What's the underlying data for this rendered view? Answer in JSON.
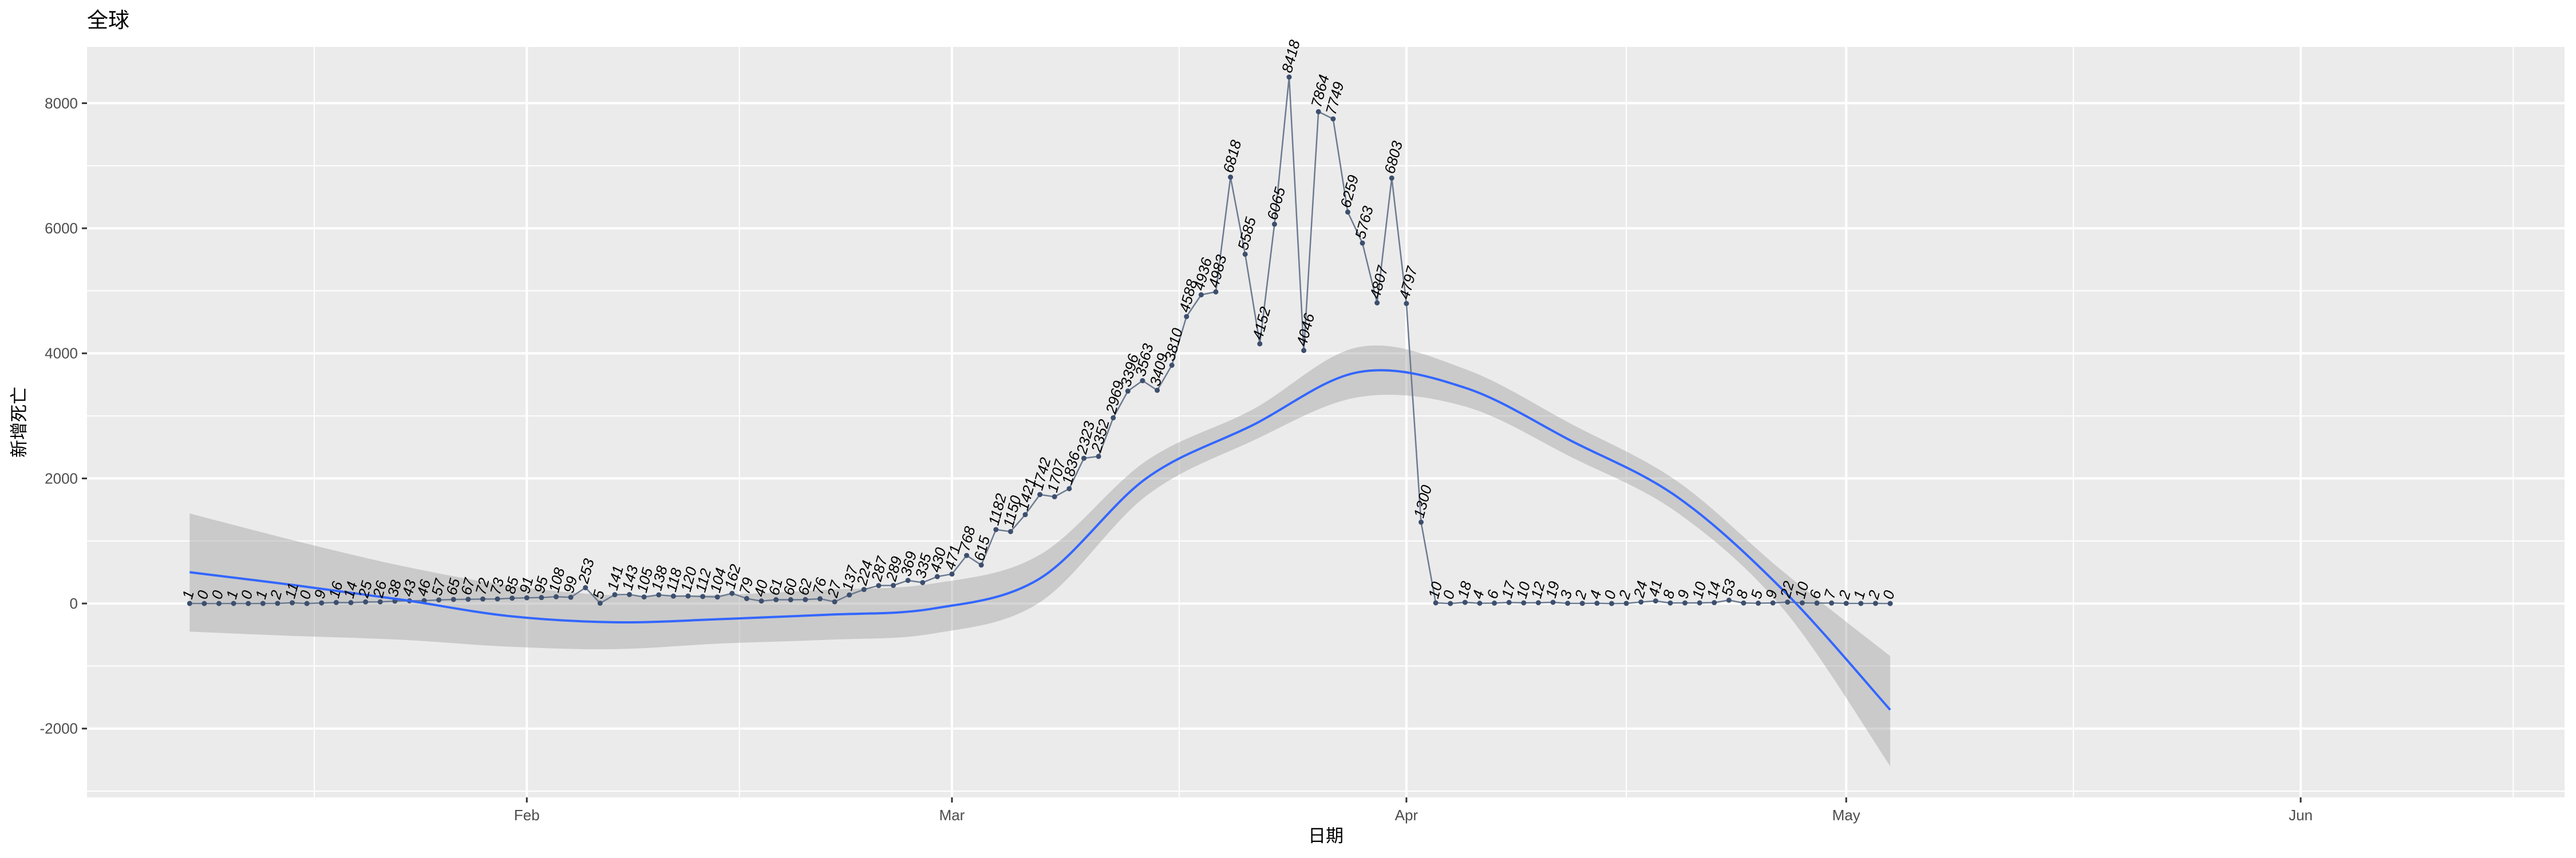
{
  "chart_data": {
    "type": "line",
    "title": "全球",
    "xlabel": "日期",
    "ylabel": "新增死亡",
    "x_start": "2020-01-09",
    "x_ticks": [
      "Feb",
      "Mar",
      "Apr",
      "May",
      "Jun"
    ],
    "y_ticks": [
      -2000,
      0,
      2000,
      4000,
      6000,
      8000
    ],
    "xlim": [
      "2020-01-02",
      "2020-06-19"
    ],
    "ylim": [
      -3100,
      8900
    ],
    "grid": true,
    "legend": "none",
    "colors": {
      "panel": "#ebebeb",
      "grid": "#ffffff",
      "line": "#6b7a90",
      "point": "#3d4f6e",
      "smooth": "#3366ff",
      "ribbon": "#999999"
    },
    "series": [
      {
        "values": [
          1,
          0,
          0,
          1,
          0,
          1,
          2,
          11,
          0,
          9,
          16,
          14,
          25,
          26,
          38,
          43,
          46,
          57,
          65,
          67,
          72,
          73,
          85,
          91,
          95,
          108,
          99,
          253,
          5,
          141,
          143,
          105,
          138,
          118,
          120,
          112,
          104,
          162,
          79,
          40,
          61,
          60,
          62,
          76,
          27,
          137,
          224,
          287,
          289,
          369,
          335,
          430,
          471,
          768,
          615,
          1182,
          1150,
          1421,
          1742,
          1707,
          1836,
          2323,
          2352,
          2969,
          3396,
          3563,
          3409,
          3810,
          4588,
          4936,
          4983,
          6818,
          5585,
          4152,
          6065,
          8418,
          4046,
          7864,
          7749,
          6259,
          5763,
          4807,
          6803,
          4797,
          1300,
          10,
          0,
          18,
          4,
          6,
          17,
          10,
          12,
          19,
          3,
          2,
          4,
          0,
          2,
          24,
          41,
          8,
          9,
          10,
          14,
          53,
          8,
          5,
          9,
          22,
          10,
          6,
          7,
          2,
          1,
          2,
          0
        ]
      },
      {
        "kind": "smooth",
        "values": [
          500,
          290,
          60,
          -200,
          -300,
          -250,
          -180,
          -80,
          400,
          2000,
          2850,
          3700,
          3450,
          2600,
          1700,
          200,
          -1700
        ],
        "lower": [
          -450,
          -520,
          -580,
          -690,
          -730,
          -640,
          -580,
          -480,
          20,
          1720,
          2600,
          3300,
          3150,
          2340,
          1450,
          -100,
          -2600
        ],
        "upper": [
          1440,
          1000,
          600,
          290,
          130,
          140,
          220,
          320,
          780,
          2280,
          3100,
          4100,
          3750,
          2870,
          1950,
          500,
          -840
        ]
      }
    ]
  }
}
